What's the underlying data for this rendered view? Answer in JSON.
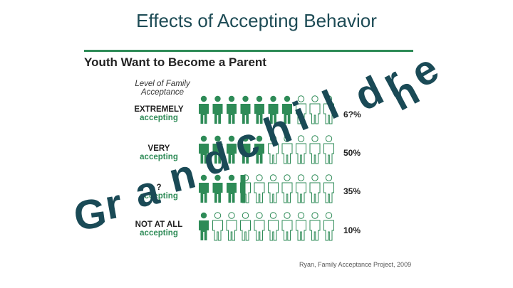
{
  "slide": {
    "title": "Effects of Accepting Behavior"
  },
  "infographic": {
    "heading": "Youth Want to Become a Parent",
    "level_label": "Level of Family Acceptance",
    "rows": [
      {
        "main": "EXTREMELY",
        "sub": "accepting",
        "percent": "6?%",
        "filled": 7
      },
      {
        "main": "VERY",
        "sub": "accepting",
        "percent": "50%",
        "filled": 5
      },
      {
        "main": "?",
        "sub": "accepting",
        "percent": "35%",
        "filled": 3.5
      },
      {
        "main": "NOT AT ALL",
        "sub": "accepting",
        "percent": "10%",
        "filled": 1
      }
    ],
    "citation": "Ryan, Family Acceptance Project, 2009"
  },
  "overlay": {
    "word": "Grandchildren"
  },
  "colors": {
    "filled": "#2e8b57",
    "empty_stroke": "#2e8b57",
    "title": "#1d4b55",
    "overlay": "#1a4a56"
  }
}
